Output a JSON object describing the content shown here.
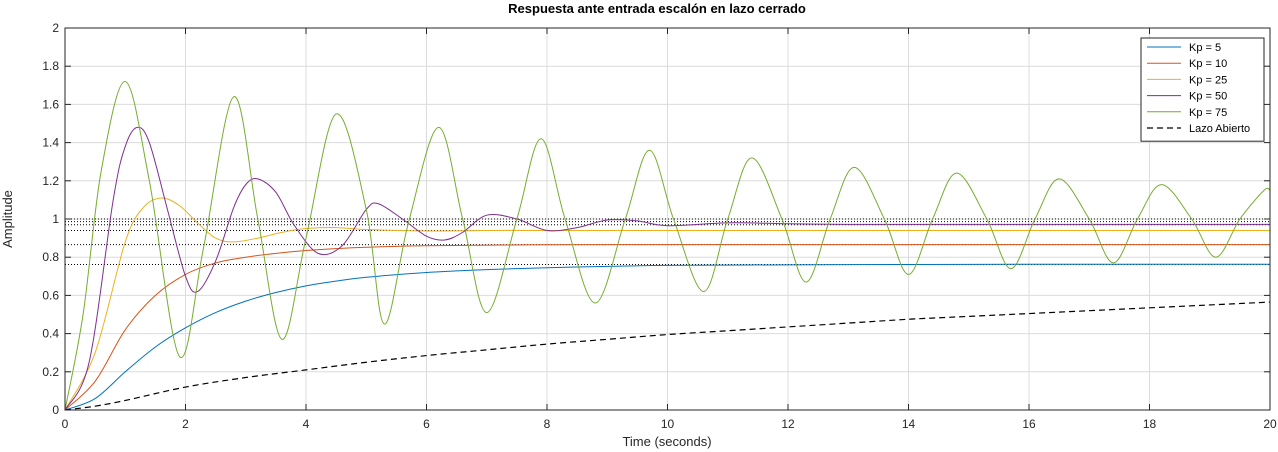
{
  "chart_data": {
    "type": "line",
    "title": "Respuesta ante entrada escalón en lazo cerrado",
    "xlabel": "Time (seconds)",
    "ylabel": "Amplitude",
    "xlim": [
      0,
      20
    ],
    "ylim": [
      0,
      2
    ],
    "xticks": [
      0,
      2,
      4,
      6,
      8,
      10,
      12,
      14,
      16,
      18,
      20
    ],
    "yticks": [
      0,
      0.2,
      0.4,
      0.6,
      0.8,
      1,
      1.2,
      1.4,
      1.6,
      1.8,
      2
    ],
    "xtick_labels": [
      "0",
      "2",
      "4",
      "6",
      "8",
      "10",
      "12",
      "14",
      "16",
      "18",
      "20"
    ],
    "ytick_labels": [
      "0",
      "0.2",
      "0.4",
      "0.6",
      "0.8",
      "1",
      "1.2",
      "1.4",
      "1.6",
      "1.8",
      "2"
    ],
    "grid": true,
    "legend_position": "top-right",
    "series": [
      {
        "name": "Kp = 5",
        "color": "#0072bd",
        "style": "solid",
        "x": [
          0,
          0.5,
          1,
          1.5,
          2,
          2.5,
          3,
          3.5,
          4,
          4.5,
          5,
          6,
          7,
          8,
          9,
          10,
          12,
          14,
          16,
          18,
          20
        ],
        "y": [
          0,
          0.06,
          0.2,
          0.33,
          0.43,
          0.51,
          0.57,
          0.615,
          0.65,
          0.675,
          0.695,
          0.72,
          0.735,
          0.745,
          0.752,
          0.757,
          0.76,
          0.762,
          0.763,
          0.763,
          0.763
        ]
      },
      {
        "name": "Kp = 10",
        "color": "#d95319",
        "style": "solid",
        "x": [
          0,
          0.5,
          1,
          1.5,
          2,
          2.5,
          3,
          3.5,
          4,
          4.5,
          5,
          6,
          8,
          10,
          12,
          14,
          16,
          18,
          20
        ],
        "y": [
          0,
          0.15,
          0.42,
          0.6,
          0.71,
          0.77,
          0.8,
          0.82,
          0.835,
          0.845,
          0.852,
          0.86,
          0.865,
          0.866,
          0.866,
          0.866,
          0.866,
          0.866,
          0.866
        ]
      },
      {
        "name": "Kp = 25",
        "color": "#edb120",
        "style": "solid",
        "x": [
          0,
          0.5,
          1,
          1.3,
          1.6,
          1.9,
          2.2,
          2.5,
          2.8,
          3.2,
          3.6,
          4,
          4.5,
          5,
          6,
          7,
          8,
          10,
          12,
          14,
          16,
          18,
          20
        ],
        "y": [
          0,
          0.3,
          0.88,
          1.06,
          1.11,
          1.07,
          0.98,
          0.9,
          0.88,
          0.9,
          0.93,
          0.95,
          0.955,
          0.945,
          0.937,
          0.94,
          0.94,
          0.94,
          0.94,
          0.94,
          0.94,
          0.94,
          0.94
        ]
      },
      {
        "name": "Kp = 50",
        "color": "#7e2f8e",
        "style": "solid",
        "x": [
          0,
          0.4,
          0.8,
          1.0,
          1.2,
          1.4,
          1.7,
          2.0,
          2.2,
          2.5,
          2.8,
          3.0,
          3.2,
          3.5,
          3.8,
          4.2,
          4.6,
          5.0,
          5.2,
          5.6,
          6.0,
          6.3,
          6.6,
          7.0,
          7.5,
          8.0,
          8.5,
          9.0,
          9.5,
          10,
          11,
          12,
          13,
          14,
          15,
          16,
          17,
          18,
          19,
          20
        ],
        "y": [
          0,
          0.25,
          1.1,
          1.38,
          1.48,
          1.4,
          1.05,
          0.7,
          0.62,
          0.78,
          1.06,
          1.18,
          1.21,
          1.14,
          0.97,
          0.82,
          0.86,
          1.05,
          1.08,
          1.0,
          0.91,
          0.89,
          0.93,
          1.02,
          1.0,
          0.94,
          0.955,
          0.995,
          0.99,
          0.965,
          0.98,
          0.975,
          0.972,
          0.972,
          0.972,
          0.972,
          0.972,
          0.972,
          0.972,
          0.972
        ]
      },
      {
        "name": "Kp = 75",
        "color": "#77ac30",
        "style": "solid",
        "x": [
          0,
          0.3,
          0.6,
          1.0,
          1.4,
          1.9,
          2.3,
          2.8,
          3.2,
          3.6,
          4.0,
          4.5,
          5.0,
          5.3,
          5.7,
          6.2,
          6.6,
          7.0,
          7.5,
          7.9,
          8.3,
          8.8,
          9.3,
          9.7,
          10.1,
          10.6,
          11.0,
          11.4,
          11.9,
          12.3,
          12.7,
          13.1,
          13.6,
          14.0,
          14.4,
          14.8,
          15.3,
          15.7,
          16.1,
          16.5,
          17.0,
          17.4,
          17.8,
          18.2,
          18.7,
          19.1,
          19.5,
          19.9,
          20
        ],
        "y": [
          0,
          0.5,
          1.25,
          1.72,
          1.2,
          0.28,
          0.85,
          1.64,
          1.0,
          0.37,
          0.9,
          1.55,
          1.05,
          0.45,
          0.98,
          1.48,
          1.0,
          0.51,
          1.0,
          1.42,
          1.0,
          0.56,
          1.0,
          1.36,
          1.0,
          0.62,
          1.0,
          1.32,
          1.0,
          0.67,
          1.0,
          1.27,
          1.0,
          0.71,
          1.0,
          1.24,
          1.0,
          0.74,
          1.0,
          1.21,
          1.0,
          0.77,
          1.0,
          1.18,
          1.0,
          0.8,
          1.0,
          1.15,
          1.15
        ]
      },
      {
        "name": "Lazo Abierto",
        "color": "#000000",
        "style": "dashed",
        "x": [
          0,
          0.5,
          1,
          2,
          3,
          4,
          5,
          6,
          7,
          8,
          9,
          10,
          11,
          12,
          13,
          14,
          15,
          16,
          17,
          18,
          19,
          20
        ],
        "y": [
          0,
          0.02,
          0.05,
          0.12,
          0.17,
          0.21,
          0.25,
          0.285,
          0.315,
          0.345,
          0.37,
          0.395,
          0.415,
          0.435,
          0.455,
          0.475,
          0.49,
          0.505,
          0.52,
          0.535,
          0.55,
          0.565
        ]
      }
    ],
    "reference_lines": [
      {
        "y": 0.762,
        "style": "dotted",
        "color": "#000000"
      },
      {
        "y": 0.866,
        "style": "dotted",
        "color": "#000000"
      },
      {
        "y": 0.94,
        "style": "dotted",
        "color": "#000000"
      },
      {
        "y": 0.97,
        "style": "dotted",
        "color": "#000000"
      },
      {
        "y": 0.986,
        "style": "dotted",
        "color": "#000000"
      },
      {
        "y": 1.0,
        "style": "dotted",
        "color": "#000000"
      }
    ]
  }
}
